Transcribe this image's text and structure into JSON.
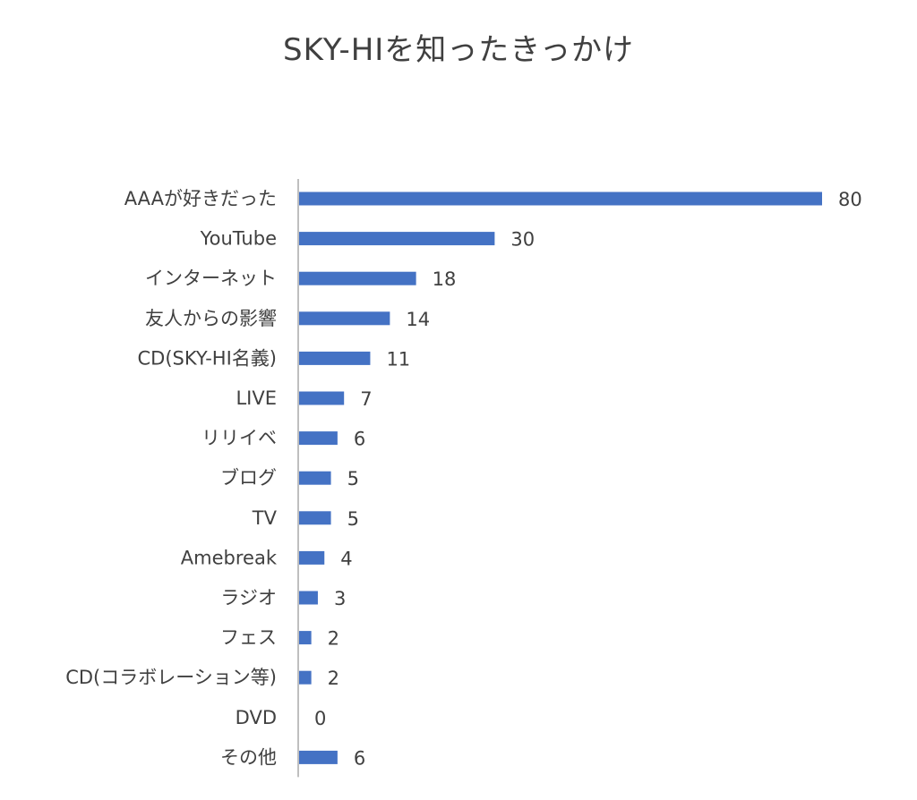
{
  "chart_data": {
    "type": "bar",
    "orientation": "horizontal",
    "title": "SKY-HIを知ったきっかけ",
    "categories": [
      "AAAが好きだった",
      "YouTube",
      "インターネット",
      "友人からの影響",
      "CD(SKY-HI名義)",
      "LIVE",
      "リリイベ",
      "ブログ",
      "TV",
      "Amebreak",
      "ラジオ",
      "フェス",
      "CD(コラボレーション等)",
      "DVD",
      "その他"
    ],
    "values": [
      80,
      30,
      18,
      14,
      11,
      7,
      6,
      5,
      5,
      4,
      3,
      2,
      2,
      0,
      6
    ],
    "xlim": [
      0,
      80
    ],
    "grid": false,
    "data_labels": true,
    "bar_color": "#4472C4",
    "axis_color": "#BFBFBF",
    "text_color": "#404040"
  }
}
